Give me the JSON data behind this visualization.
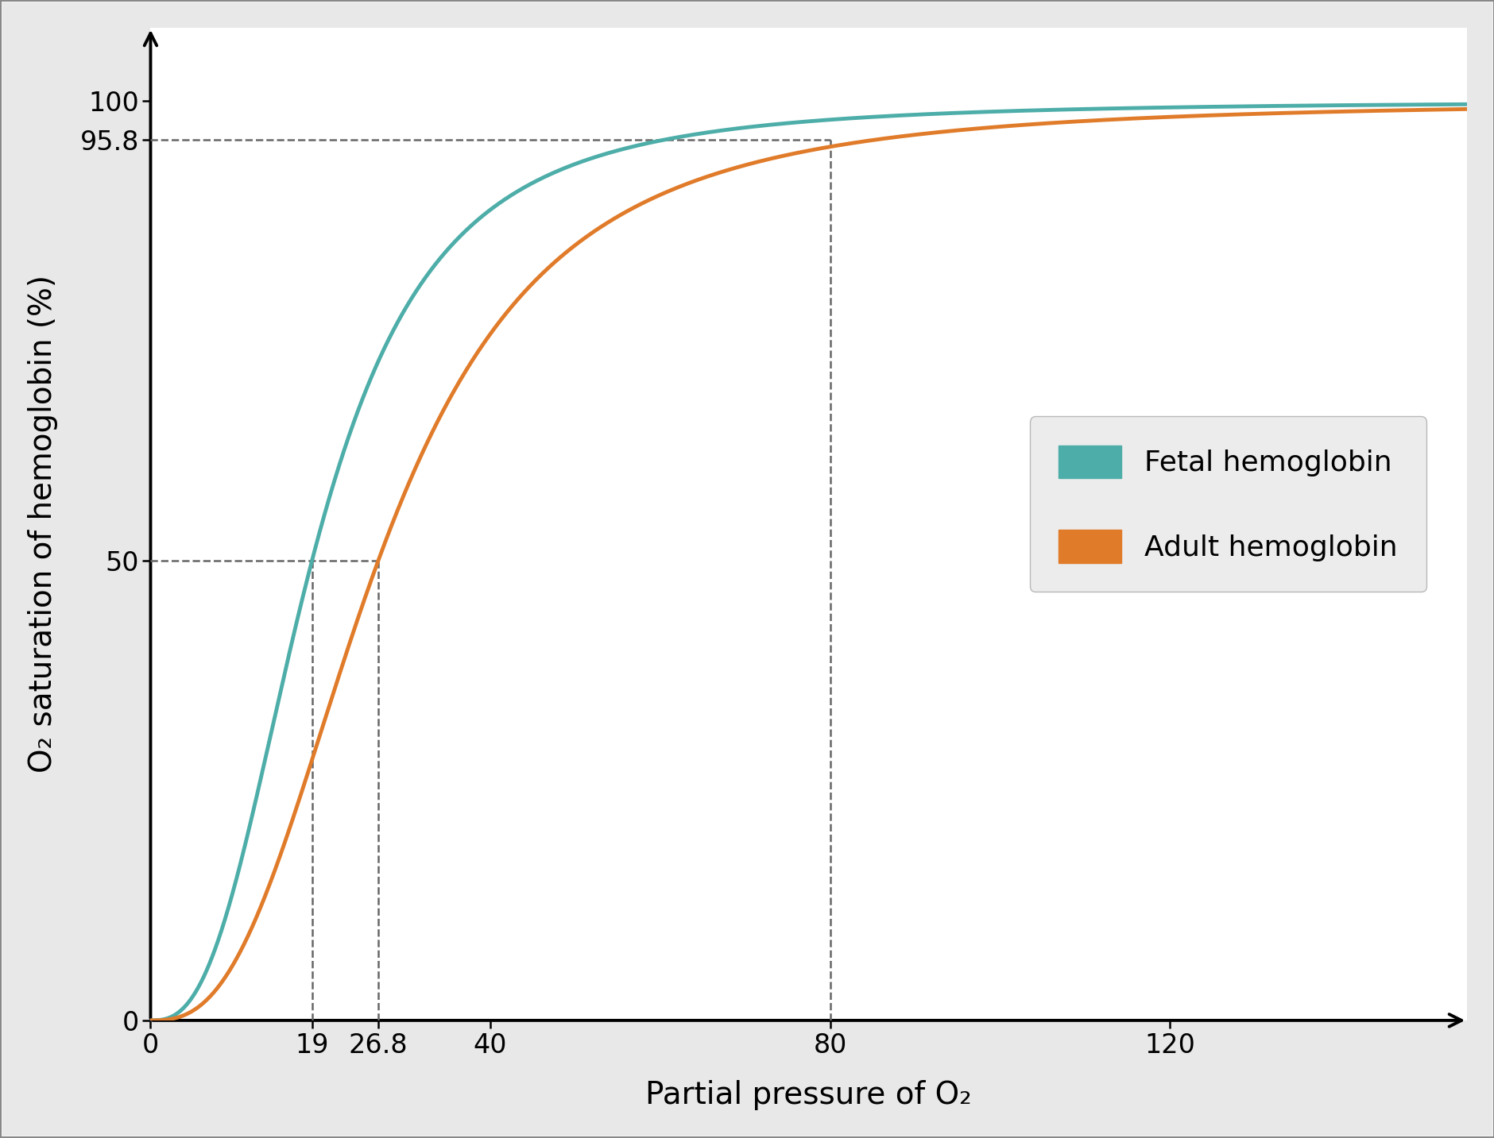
{
  "title": "",
  "xlabel": "Partial pressure of O₂",
  "ylabel": "O₂ saturation of hemoglobin (%)",
  "fetal_color": "#4DADA8",
  "adult_color": "#E07B2A",
  "fetal_label": "Fetal hemoglobin",
  "adult_label": "Adult hemoglobin",
  "fetal_p50": 19,
  "adult_p50": 26.8,
  "hill_n": 2.7,
  "dashed_x_at_80": 80,
  "dashed_y_at_95_8": 95.8,
  "dashed_y_at_50": 50,
  "ytick_labels": [
    "0",
    "50",
    "95.8",
    "100"
  ],
  "ytick_values": [
    0,
    50,
    95.8,
    100
  ],
  "xtick_labels": [
    "0",
    "19",
    "26.8",
    "40",
    "80",
    "120"
  ],
  "xtick_values": [
    0,
    19,
    26.8,
    40,
    80,
    120
  ],
  "xlim": [
    0,
    155
  ],
  "ylim": [
    0,
    108
  ],
  "background_color": "#e8e8e8",
  "plot_bg": "#ffffff",
  "line_width": 3.5,
  "dashed_color": "#666666",
  "dashed_lw": 1.8,
  "axis_color": "#000000",
  "legend_facecolor": "#e8e8e8",
  "legend_edgecolor": "#aaaaaa",
  "tick_fontsize": 24,
  "label_fontsize": 28,
  "legend_fontsize": 26
}
